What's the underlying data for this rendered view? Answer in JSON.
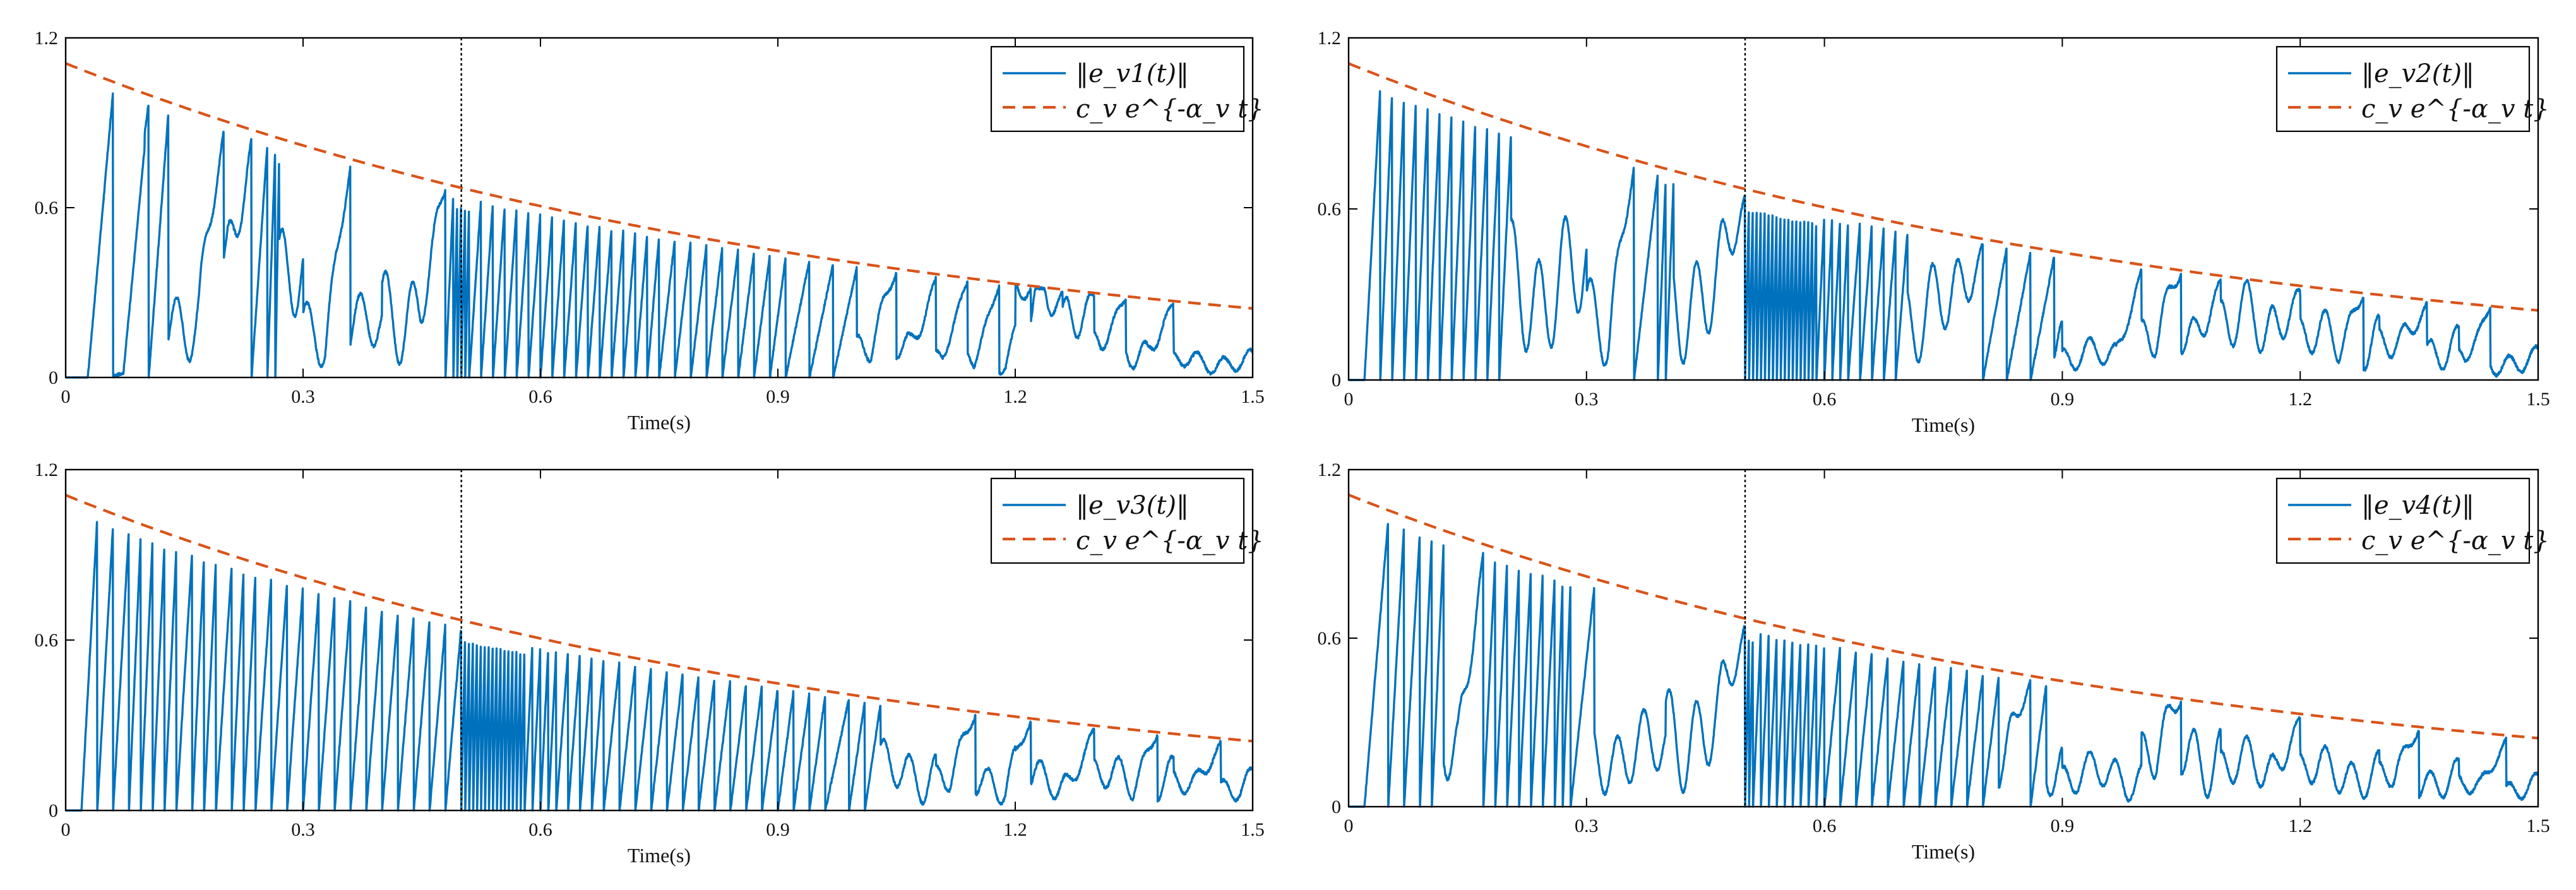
{
  "colors": {
    "error": "#0072BD",
    "bound": "#D95319",
    "axis": "#000000",
    "marker": "#000000"
  },
  "chart_data": [
    {
      "type": "line",
      "title": "",
      "xlabel": "Time(s)",
      "ylabel": "",
      "xlim": [
        0,
        1.5
      ],
      "ylim": [
        0,
        1.2
      ],
      "xticks": [
        0,
        0.3,
        0.6,
        0.9,
        1.2,
        1.5
      ],
      "xtick_labels": [
        "0",
        "0.3",
        "0.6",
        "0.9",
        "1.2",
        "1.5"
      ],
      "yticks": [
        0,
        0.6,
        1.2
      ],
      "ytick_labels": [
        "0",
        "0.6",
        "1.2"
      ],
      "event_line_x": 0.5,
      "bound": {
        "name": "c_v e^{-α_v t}",
        "c": 1.11,
        "alpha": 1.01
      },
      "legend": [
        "‖e_v1(t)‖",
        "c_v e^{-α_v t}"
      ],
      "legend_position": "top-right",
      "series": [
        {
          "name": "‖e_v1(t)‖",
          "onset": 0.028,
          "spikes": [
            0.06,
            0.105,
            0.13,
            0.2,
            0.235,
            0.255,
            0.265,
            0.27,
            0.36,
            0.48,
            0.49,
            0.495,
            0.5,
            0.505,
            0.51,
            0.525,
            0.54,
            0.555,
            0.57,
            0.585,
            0.6,
            0.615,
            0.63,
            0.645,
            0.66,
            0.675,
            0.69,
            0.705,
            0.72,
            0.735,
            0.75,
            0.77,
            0.79,
            0.81,
            0.83,
            0.85,
            0.87,
            0.89,
            0.91,
            0.94,
            0.97,
            1.0,
            1.05,
            1.1,
            1.14,
            1.18,
            1.22,
            1.26,
            1.3,
            1.34,
            1.4
          ],
          "fill": [
            0.02,
            0.4,
            0.55,
            0.3,
            0.45,
            0.2,
            0.5,
            0.25,
            0.6,
            0.35,
            0.2,
            0.12,
            0.4,
            0.18,
            0.1
          ]
        },
        {
          "name": "‖e_v2(t)‖",
          "onset": 0.02,
          "spikes": [
            0.04,
            0.055,
            0.07,
            0.085,
            0.1,
            0.115,
            0.13,
            0.145,
            0.16,
            0.175,
            0.19,
            0.205,
            0.36,
            0.39,
            0.4,
            0.41,
            0.5,
            0.505,
            0.51,
            0.515,
            0.52,
            0.525,
            0.53,
            0.535,
            0.54,
            0.545,
            0.55,
            0.555,
            0.56,
            0.565,
            0.57,
            0.575,
            0.58,
            0.585,
            0.59,
            0.6,
            0.61,
            0.62,
            0.63,
            0.645,
            0.66,
            0.675,
            0.69,
            0.705,
            0.8,
            0.83,
            0.86,
            0.89,
            1.0,
            1.05,
            1.1,
            1.2,
            1.28,
            1.36,
            1.44
          ],
          "fill": [
            0.02,
            0.35,
            0.6,
            0.4,
            0.55,
            0.2,
            0.35,
            0.45,
            0.3,
            0.15,
            0.28,
            0.35,
            0.25,
            0.2,
            0.12
          ]
        },
        {
          "name": "‖e_v3(t)‖",
          "onset": 0.02,
          "spikes": [
            0.04,
            0.06,
            0.08,
            0.095,
            0.11,
            0.125,
            0.14,
            0.16,
            0.175,
            0.19,
            0.21,
            0.225,
            0.24,
            0.26,
            0.28,
            0.3,
            0.32,
            0.34,
            0.36,
            0.38,
            0.4,
            0.42,
            0.44,
            0.46,
            0.48,
            0.5,
            0.505,
            0.51,
            0.515,
            0.52,
            0.525,
            0.53,
            0.535,
            0.54,
            0.545,
            0.55,
            0.555,
            0.56,
            0.565,
            0.57,
            0.575,
            0.58,
            0.59,
            0.6,
            0.61,
            0.62,
            0.635,
            0.65,
            0.665,
            0.68,
            0.7,
            0.72,
            0.74,
            0.76,
            0.78,
            0.8,
            0.82,
            0.84,
            0.86,
            0.88,
            0.9,
            0.92,
            0.94,
            0.96,
            0.99,
            1.01,
            1.03,
            1.15,
            1.22,
            1.3,
            1.38,
            1.46
          ],
          "fill": [
            0.02,
            0.4,
            0.35,
            0.45,
            0.3,
            0.5,
            0.4,
            0.55,
            0.3,
            0.2,
            0.25,
            0.2,
            0.18,
            0.2,
            0.15
          ]
        },
        {
          "name": "‖e_v4(t)‖",
          "onset": 0.02,
          "spikes": [
            0.05,
            0.07,
            0.09,
            0.105,
            0.12,
            0.17,
            0.185,
            0.2,
            0.215,
            0.23,
            0.245,
            0.26,
            0.27,
            0.28,
            0.31,
            0.5,
            0.505,
            0.51,
            0.52,
            0.53,
            0.54,
            0.55,
            0.56,
            0.57,
            0.58,
            0.59,
            0.6,
            0.62,
            0.64,
            0.66,
            0.68,
            0.7,
            0.72,
            0.74,
            0.76,
            0.78,
            0.8,
            0.82,
            0.86,
            0.88,
            1.05,
            1.2,
            1.35,
            1.46
          ],
          "fill": [
            0.02,
            0.45,
            0.55,
            0.35,
            0.5,
            0.3,
            0.25,
            0.6,
            0.3,
            0.2,
            0.35,
            0.25,
            0.22,
            0.18,
            0.12
          ]
        }
      ]
    }
  ]
}
